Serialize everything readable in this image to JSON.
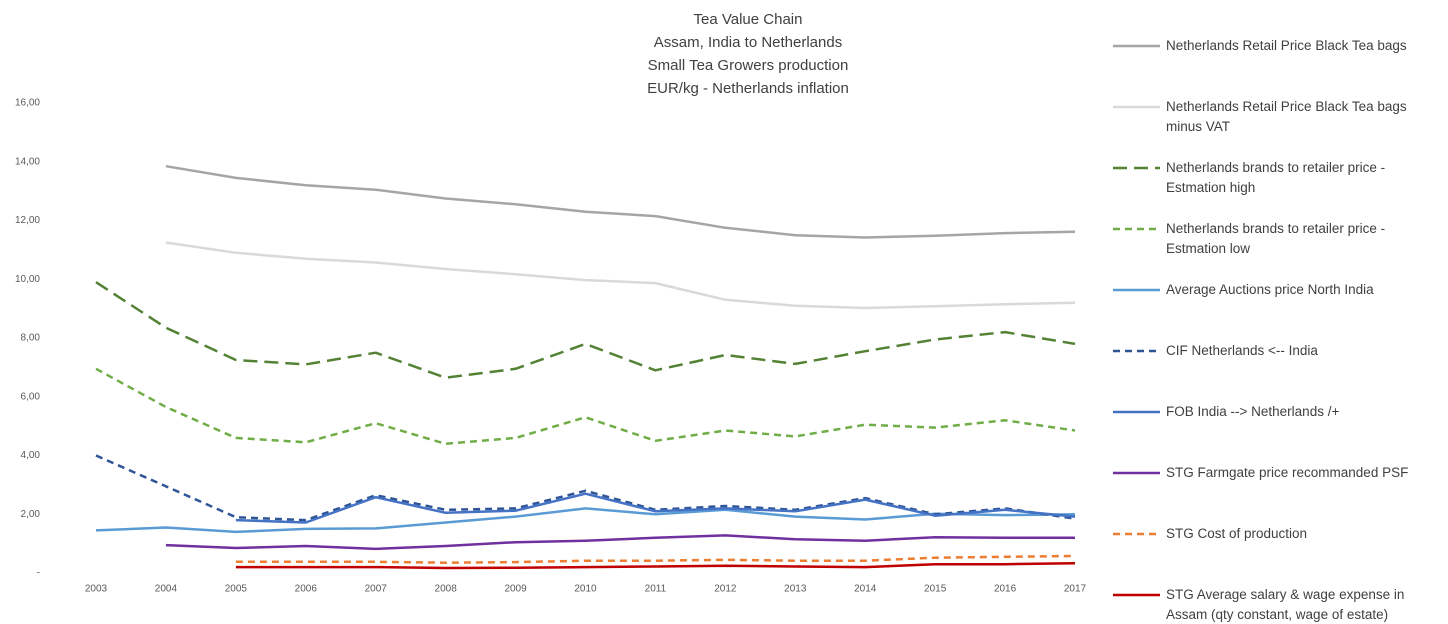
{
  "chart_data": {
    "type": "line",
    "title": [
      "Tea Value Chain",
      "Assam, India to Netherlands",
      "Small Tea Growers production",
      "EUR/kg - Netherlands inflation"
    ],
    "categories": [
      "2003",
      "2004",
      "2005",
      "2006",
      "2007",
      "2008",
      "2009",
      "2010",
      "2011",
      "2012",
      "2013",
      "2014",
      "2015",
      "2016",
      "2017"
    ],
    "ylim": [
      0,
      16
    ],
    "yticks": [
      {
        "value": 0,
        "label": "-"
      },
      {
        "value": 2,
        "label": "2,00"
      },
      {
        "value": 4,
        "label": "4,00"
      },
      {
        "value": 6,
        "label": "6,00"
      },
      {
        "value": 8,
        "label": "8,00"
      },
      {
        "value": 10,
        "label": "10,00"
      },
      {
        "value": 12,
        "label": "12,00"
      },
      {
        "value": 14,
        "label": "14,00"
      },
      {
        "value": 16,
        "label": "16,00"
      }
    ],
    "grid": false,
    "legend": "right",
    "series": [
      {
        "name": "Netherlands Retail Price Black Tea bags",
        "color": "#a5a5a5",
        "dash": "solid",
        "values": [
          null,
          13.85,
          13.45,
          13.2,
          13.05,
          12.75,
          12.55,
          12.3,
          12.15,
          11.75,
          11.5,
          11.42,
          11.48,
          11.57,
          11.62
        ]
      },
      {
        "name": "Netherlands Retail Price Black Tea bags minus VAT",
        "color": "#d9d9d9",
        "dash": "solid",
        "values": [
          null,
          11.25,
          10.9,
          10.7,
          10.57,
          10.35,
          10.17,
          9.97,
          9.87,
          9.3,
          9.1,
          9.02,
          9.08,
          9.15,
          9.2
        ]
      },
      {
        "name": "Netherlands brands to retailer price - Estmation high",
        "color": "#548235",
        "dash": "long",
        "values": [
          9.9,
          8.35,
          7.25,
          7.1,
          7.5,
          6.65,
          6.95,
          7.8,
          6.9,
          7.42,
          7.12,
          7.55,
          7.95,
          8.2,
          7.8
        ]
      },
      {
        "name": "Netherlands brands to retailer price - Estmation low",
        "color": "#70ad47",
        "dash": "short",
        "values": [
          6.95,
          5.65,
          4.6,
          4.45,
          5.1,
          4.4,
          4.6,
          5.3,
          4.5,
          4.85,
          4.65,
          5.05,
          4.95,
          5.2,
          4.85
        ]
      },
      {
        "name": "Average Auctions price North India",
        "color": "#5b9bd5",
        "dash": "solid",
        "values": [
          1.45,
          1.55,
          1.4,
          1.5,
          1.52,
          1.72,
          1.92,
          2.2,
          2.0,
          2.15,
          1.92,
          1.82,
          2.02,
          1.97,
          2.0
        ]
      },
      {
        "name": "CIF Netherlands <-- India",
        "color": "#2f5597",
        "dash": "short",
        "values": [
          4.0,
          2.95,
          1.9,
          1.8,
          2.65,
          2.15,
          2.2,
          2.8,
          2.15,
          2.28,
          2.15,
          2.55,
          2.0,
          2.2,
          1.85
        ]
      },
      {
        "name": "FOB India --> Netherlands /+",
        "color": "#4472c4",
        "dash": "solid",
        "values": [
          null,
          null,
          1.8,
          1.72,
          2.58,
          2.05,
          2.12,
          2.7,
          2.1,
          2.2,
          2.1,
          2.5,
          1.95,
          2.15,
          1.92
        ]
      },
      {
        "name": "STG Farmgate price recommanded PSF",
        "color": "#7030a0",
        "dash": "solid",
        "values": [
          null,
          0.95,
          0.85,
          0.92,
          0.82,
          0.92,
          1.05,
          1.1,
          1.2,
          1.28,
          1.15,
          1.1,
          1.22,
          1.2,
          1.2
        ]
      },
      {
        "name": "STG Cost of production",
        "color": "#ed7d31",
        "dash": "short",
        "values": [
          null,
          null,
          0.38,
          0.38,
          0.38,
          0.35,
          0.37,
          0.42,
          0.42,
          0.45,
          0.42,
          0.42,
          0.52,
          0.55,
          0.58
        ]
      },
      {
        "name": "STG Average salary & wage expense in Assam (qty constant, wage of estate)",
        "color": "#c00000",
        "dash": "solid",
        "values": [
          null,
          null,
          0.2,
          0.2,
          0.2,
          0.17,
          0.18,
          0.2,
          0.22,
          0.25,
          0.22,
          0.2,
          0.3,
          0.3,
          0.33
        ]
      }
    ]
  }
}
